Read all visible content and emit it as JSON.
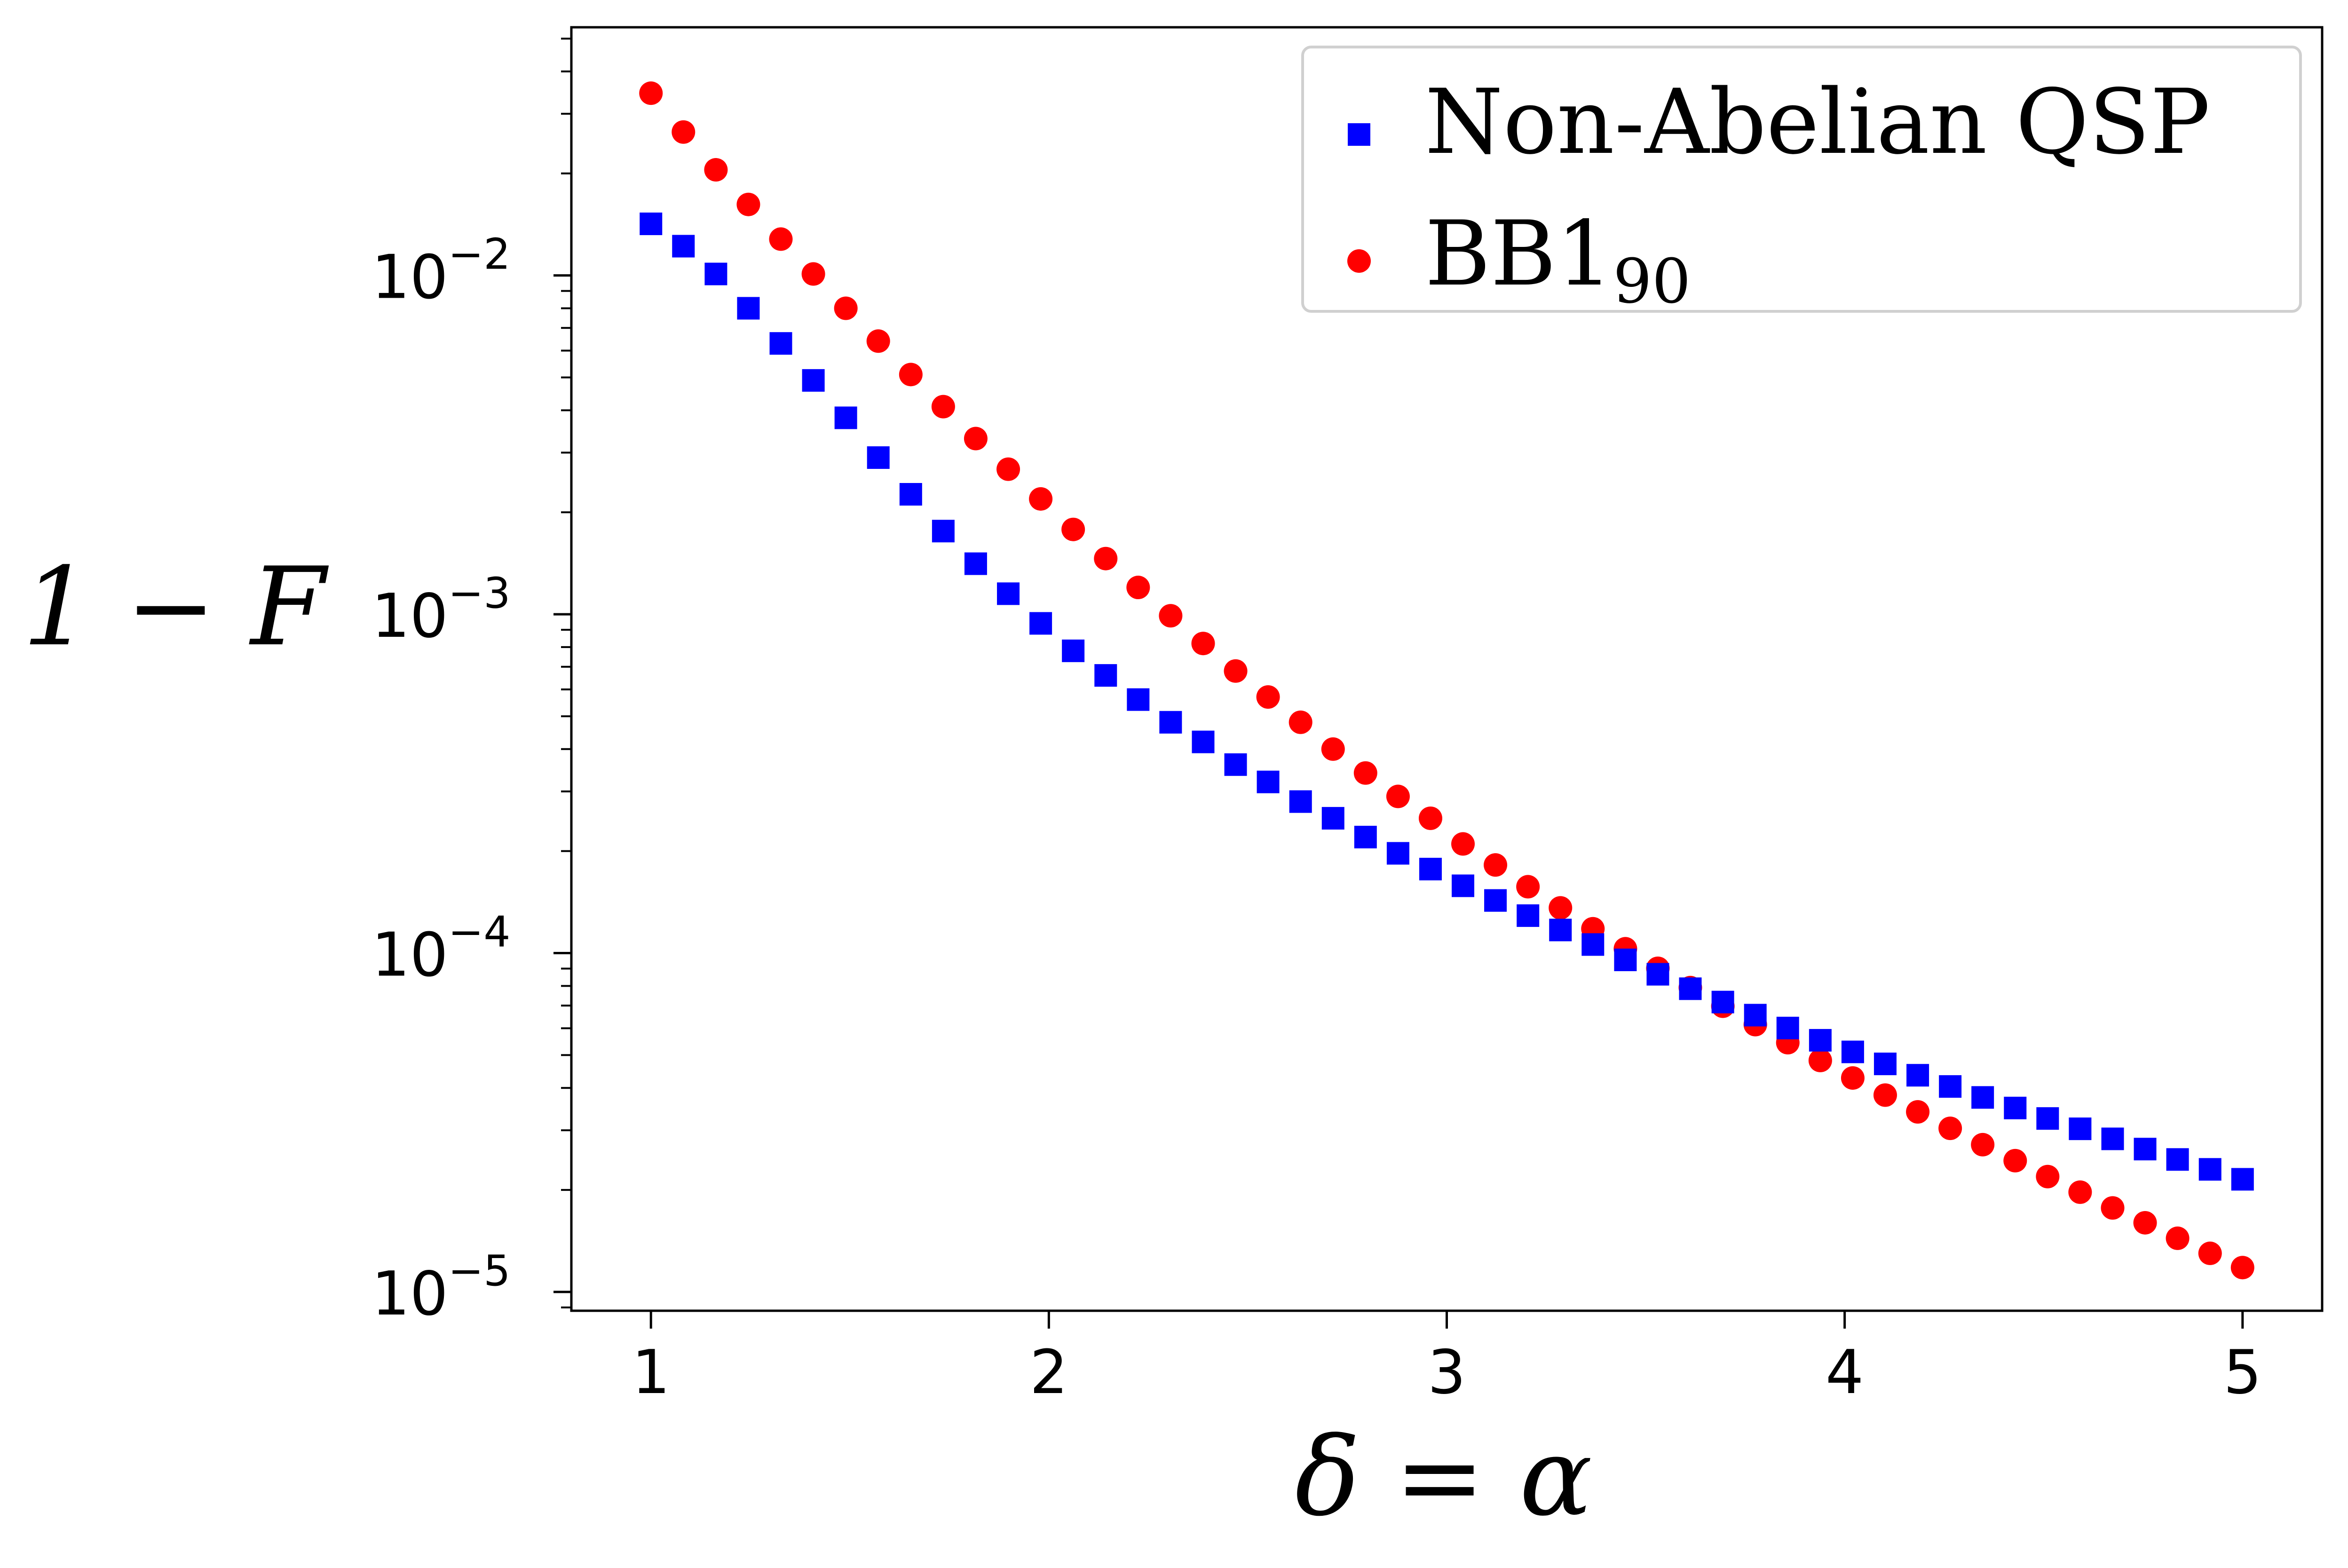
{
  "chart_data": {
    "type": "scatter",
    "xlabel": "δ = α",
    "ylabel": "1 − F",
    "xlim": [
      0.8,
      5.2
    ],
    "ylim": [
      8.8e-06,
      0.054
    ],
    "y_scale": "log",
    "grid": false,
    "legend_position": "top-right",
    "x_ticks": [
      {
        "value": 1,
        "label": "1"
      },
      {
        "value": 2,
        "label": "2"
      },
      {
        "value": 3,
        "label": "3"
      },
      {
        "value": 4,
        "label": "4"
      },
      {
        "value": 5,
        "label": "5"
      }
    ],
    "y_ticks": [
      {
        "value": 0.01,
        "base": "10",
        "exp": "−2"
      },
      {
        "value": 0.001,
        "base": "10",
        "exp": "−3"
      },
      {
        "value": 0.0001,
        "base": "10",
        "exp": "−4"
      },
      {
        "value": 1e-05,
        "base": "10",
        "exp": "−5"
      }
    ],
    "x": [
      1.0,
      1.0816,
      1.1633,
      1.2449,
      1.3265,
      1.4082,
      1.4898,
      1.5714,
      1.6531,
      1.7347,
      1.8163,
      1.898,
      1.9796,
      2.0612,
      2.1429,
      2.2245,
      2.3061,
      2.3878,
      2.4694,
      2.551,
      2.6327,
      2.7143,
      2.7959,
      2.8776,
      2.9592,
      3.0408,
      3.1224,
      3.2041,
      3.2857,
      3.3673,
      3.449,
      3.5306,
      3.6122,
      3.6939,
      3.7755,
      3.8571,
      3.9388,
      4.0204,
      4.102,
      4.1837,
      4.2653,
      4.3469,
      4.4286,
      4.5102,
      4.5918,
      4.6735,
      4.7551,
      4.8367,
      4.9184,
      5.0
    ],
    "series": [
      {
        "name": "Non-Abelian QSP",
        "marker": "square",
        "color": "#0000ff",
        "values": [
          0.0142,
          0.0122,
          0.0101,
          0.008,
          0.0063,
          0.0049,
          0.0038,
          0.0029,
          0.00226,
          0.00176,
          0.00141,
          0.00115,
          0.00094,
          0.00078,
          0.00066,
          0.00056,
          0.00048,
          0.00042,
          0.00036,
          0.00032,
          0.00028,
          0.00025,
          0.00022,
          0.000197,
          0.000177,
          0.000158,
          0.000143,
          0.000129,
          0.000117,
          0.000106,
          9.55e-05,
          8.66e-05,
          7.85e-05,
          7.17e-05,
          6.56e-05,
          6.01e-05,
          5.53e-05,
          5.11e-05,
          4.71e-05,
          4.36e-05,
          4.04e-05,
          3.75e-05,
          3.49e-05,
          3.25e-05,
          3.03e-05,
          2.83e-05,
          2.64e-05,
          2.46e-05,
          2.3e-05,
          2.15e-05
        ]
      },
      {
        "name": "BB1",
        "name_sub": "90",
        "marker": "circle",
        "color": "#ff0000",
        "values": [
          0.0345,
          0.0265,
          0.0205,
          0.0162,
          0.0128,
          0.0101,
          0.008,
          0.0064,
          0.0051,
          0.0041,
          0.0033,
          0.00268,
          0.00219,
          0.00178,
          0.00146,
          0.0012,
          0.00099,
          0.00082,
          0.00068,
          0.00057,
          0.00048,
          0.0004,
          0.00034,
          0.00029,
          0.00025,
          0.00021,
          0.000182,
          0.000157,
          0.000136,
          0.000118,
          0.000103,
          9.02e-05,
          7.91e-05,
          6.97e-05,
          6.15e-05,
          5.44e-05,
          4.82e-05,
          4.28e-05,
          3.81e-05,
          3.4e-05,
          3.04e-05,
          2.72e-05,
          2.44e-05,
          2.19e-05,
          1.97e-05,
          1.77e-05,
          1.6e-05,
          1.44e-05,
          1.3e-05,
          1.18e-05
        ]
      }
    ]
  }
}
